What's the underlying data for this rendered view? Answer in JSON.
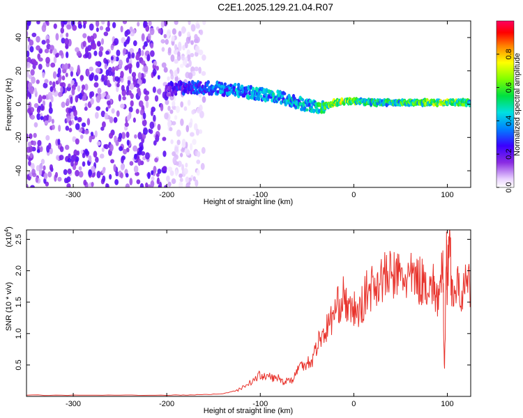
{
  "title": "C2E1.2025.129.21.04.R07",
  "colors": {
    "snr_line": "#e8322b",
    "axes": "#000000"
  },
  "chart_data": [
    {
      "type": "heatmap",
      "xlabel": "Height of straight line (km)",
      "ylabel": "Frequency (Hz)",
      "xlim": [
        -350,
        125
      ],
      "ylim": [
        -50,
        50
      ],
      "xticks": [
        -300,
        -200,
        -100,
        0,
        100
      ],
      "xtick_labels": [
        "-300",
        "-200",
        "-100",
        "0",
        "100"
      ],
      "yticks": [
        -40,
        -20,
        0,
        20,
        40
      ],
      "ytick_labels": [
        "-40",
        "-20",
        "0",
        "20",
        "40"
      ],
      "colorbar": {
        "label": "Normalized spectral amplitude",
        "range": [
          0,
          1
        ],
        "ticks": [
          0.0,
          0.2,
          0.4,
          0.6,
          0.8
        ],
        "tick_labels": [
          "0.0",
          "0.2",
          "0.4",
          "0.6",
          "0.8"
        ],
        "colormap": "rainbow"
      },
      "ridge": {
        "x": [
          -200,
          -180,
          -160,
          -140,
          -120,
          -100,
          -80,
          -60,
          -40,
          -30,
          -20,
          0,
          20,
          40,
          60,
          80,
          100,
          125
        ],
        "center_hz": [
          9,
          10,
          10,
          9,
          8,
          6,
          4,
          1,
          -2,
          -1,
          1,
          2,
          1,
          1,
          1,
          1,
          1,
          1
        ],
        "amplitude": [
          0.22,
          0.3,
          0.35,
          0.38,
          0.42,
          0.42,
          0.45,
          0.45,
          0.5,
          0.6,
          0.75,
          0.62,
          0.55,
          0.55,
          0.6,
          0.65,
          0.7,
          0.55
        ]
      },
      "noise_region_x": [
        -350,
        -160
      ],
      "noise_amplitude": 0.18
    },
    {
      "type": "line",
      "xlabel": "Height of straight line (km)",
      "ylabel": "SNR (10 * v/v)",
      "y_scale_label": "(x10",
      "y_scale_exp": "4",
      "y_scale_close": ")",
      "xlim": [
        -350,
        125
      ],
      "ylim": [
        0,
        2.65
      ],
      "xticks": [
        -300,
        -200,
        -100,
        0,
        100
      ],
      "xtick_labels": [
        "-300",
        "-200",
        "-100",
        "0",
        "100"
      ],
      "yticks": [
        0.5,
        1.0,
        1.5,
        2.0,
        2.5
      ],
      "ytick_labels": [
        "0.5",
        "1.0",
        "1.5",
        "2.0",
        "2.5"
      ],
      "series": [
        {
          "x": [
            -350,
            -300,
            -250,
            -200,
            -180,
            -160,
            -140,
            -125,
            -115,
            -105,
            -100,
            -95,
            -90,
            -85,
            -80,
            -75,
            -70,
            -65,
            -60,
            -55,
            -50,
            -45,
            -40,
            -35,
            -30,
            -25,
            -20,
            -15,
            -10,
            -5,
            0,
            5,
            10,
            15,
            20,
            25,
            30,
            35,
            40,
            45,
            50,
            55,
            60,
            65,
            70,
            75,
            80,
            85,
            88,
            92,
            95,
            97,
            99,
            100,
            102,
            105,
            110,
            115,
            120,
            125
          ],
          "y": [
            0.02,
            0.02,
            0.02,
            0.02,
            0.02,
            0.03,
            0.04,
            0.1,
            0.18,
            0.28,
            0.35,
            0.3,
            0.32,
            0.28,
            0.3,
            0.22,
            0.28,
            0.25,
            0.45,
            0.5,
            0.55,
            0.55,
            0.8,
            0.95,
            1.05,
            1.2,
            1.35,
            1.5,
            1.6,
            1.3,
            1.4,
            1.3,
            1.5,
            1.7,
            1.75,
            1.82,
            1.88,
            1.9,
            1.92,
            1.93,
            1.9,
            1.88,
            1.88,
            1.87,
            1.85,
            1.82,
            1.8,
            1.75,
            1.6,
            1.5,
            2.2,
            0.4,
            2.4,
            1.6,
            2.65,
            1.7,
            1.72,
            1.65,
            1.75,
            1.72
          ]
        }
      ]
    }
  ]
}
